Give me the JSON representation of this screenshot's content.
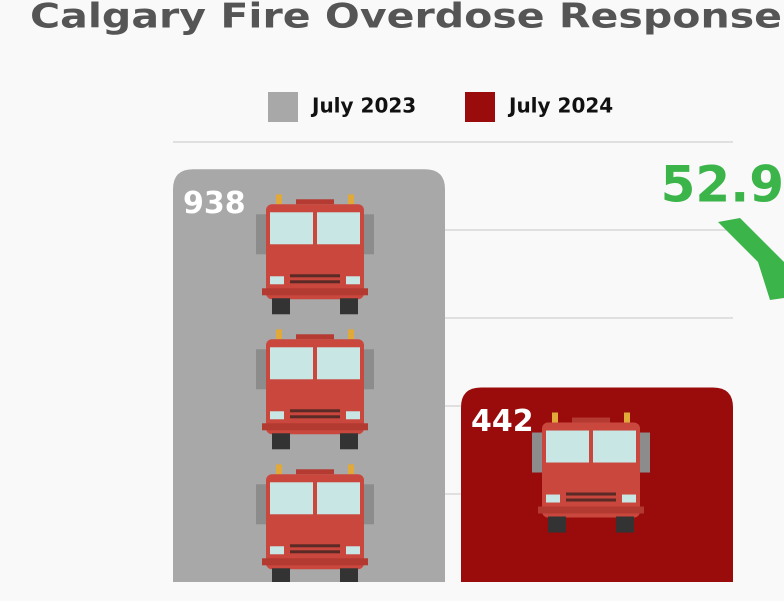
{
  "chart_data": {
    "type": "bar",
    "title": "Calgary Fire Overdose Response",
    "categories": [
      "July 2023",
      "July 2024"
    ],
    "series": [
      {
        "name": "July 2023",
        "color": "#a8a8a8"
      },
      {
        "name": "July 2024",
        "color": "#9a0c0c"
      }
    ],
    "values": [
      938,
      442
    ],
    "ylim": [
      0,
      1000
    ],
    "yticks": [
      200,
      400,
      600,
      800,
      1000
    ],
    "grid": true,
    "change_label": "52.9",
    "change_color": "#3bb44a"
  }
}
